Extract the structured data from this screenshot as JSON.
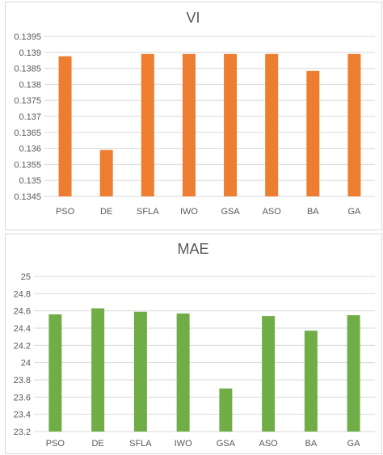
{
  "chart_data": [
    {
      "type": "bar",
      "title": "VI",
      "categories": [
        "PSO",
        "DE",
        "SFLA",
        "IWO",
        "GSA",
        "ASO",
        "BA",
        "GA"
      ],
      "values": [
        0.13888,
        0.13595,
        0.13895,
        0.13895,
        0.13895,
        0.13895,
        0.13842,
        0.13895
      ],
      "ylim": [
        0.1345,
        0.1395
      ],
      "yticks": [
        "0.1345",
        "0.135",
        "0.1355",
        "0.136",
        "0.1365",
        "0.137",
        "0.1375",
        "0.138",
        "0.1385",
        "0.139",
        "0.1395"
      ],
      "grid": true,
      "legend": "none",
      "color": "#ED7D31"
    },
    {
      "type": "bar",
      "title": "MAE",
      "categories": [
        "PSO",
        "DE",
        "SFLA",
        "IWO",
        "GSA",
        "ASO",
        "BA",
        "GA"
      ],
      "values": [
        24.56,
        24.63,
        24.59,
        24.57,
        23.7,
        24.54,
        24.37,
        24.55
      ],
      "ylim": [
        23.2,
        25
      ],
      "yticks": [
        "23.2",
        "23.4",
        "23.6",
        "23.8",
        "24",
        "24.2",
        "24.4",
        "24.6",
        "24.8",
        "25"
      ],
      "grid": true,
      "legend": "none",
      "color": "#70AD47"
    }
  ]
}
